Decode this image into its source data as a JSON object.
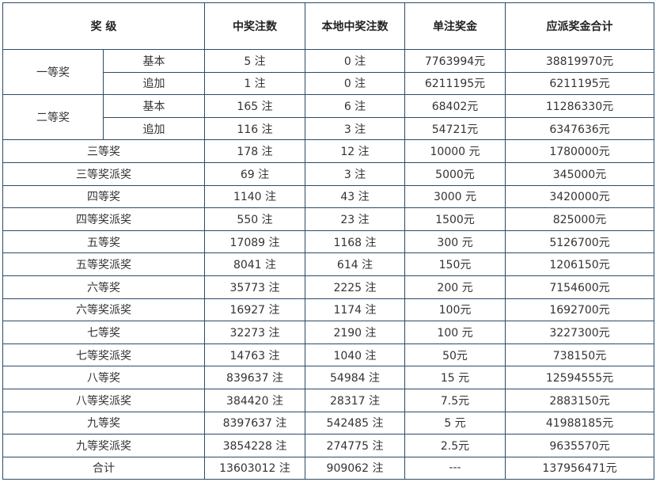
{
  "table": {
    "header": [
      "奖 级",
      "中奖注数",
      "本地中奖注数",
      "单注奖金",
      "应派奖金合计"
    ],
    "rows": [
      {
        "level": "一等奖",
        "sub": "基本",
        "count": "5 注",
        "local": "0 注",
        "prize": "7763994元",
        "total": "38819970元"
      },
      {
        "sub": "追加",
        "count": "1 注",
        "local": "0 注",
        "prize": "6211195元",
        "total": "6211195元"
      },
      {
        "level": "二等奖",
        "sub": "基本",
        "count": "165 注",
        "local": "6 注",
        "prize": "68402元",
        "total": "11286330元"
      },
      {
        "sub": "追加",
        "count": "116 注",
        "local": "3 注",
        "prize": "54721元",
        "total": "6347636元"
      },
      {
        "level": "三等奖",
        "count": "178 注",
        "local": "12 注",
        "prize": "10000 元",
        "total": "1780000元"
      },
      {
        "level": "三等奖派奖",
        "count": "69 注",
        "local": "3 注",
        "prize": "5000元",
        "total": "345000元"
      },
      {
        "level": "四等奖",
        "count": "1140 注",
        "local": "43 注",
        "prize": "3000 元",
        "total": "3420000元"
      },
      {
        "level": "四等奖派奖",
        "count": "550 注",
        "local": "23 注",
        "prize": "1500元",
        "total": "825000元"
      },
      {
        "level": "五等奖",
        "count": "17089 注",
        "local": "1168 注",
        "prize": "300 元",
        "total": "5126700元"
      },
      {
        "level": "五等奖派奖",
        "count": "8041 注",
        "local": "614 注",
        "prize": "150元",
        "total": "1206150元"
      },
      {
        "level": "六等奖",
        "count": "35773 注",
        "local": "2225 注",
        "prize": "200 元",
        "total": "7154600元"
      },
      {
        "level": "六等奖派奖",
        "count": "16927 注",
        "local": "1174 注",
        "prize": "100元",
        "total": "1692700元"
      },
      {
        "level": "七等奖",
        "count": "32273 注",
        "local": "2190 注",
        "prize": "100 元",
        "total": "3227300元"
      },
      {
        "level": "七等奖派奖",
        "count": "14763 注",
        "local": "1040 注",
        "prize": "50元",
        "total": "738150元"
      },
      {
        "level": "八等奖",
        "count": "839637 注",
        "local": "54984 注",
        "prize": "15 元",
        "total": "12594555元"
      },
      {
        "level": "八等奖派奖",
        "count": "384420 注",
        "local": "28317 注",
        "prize": "7.5元",
        "total": "2883150元"
      },
      {
        "level": "九等奖",
        "count": "8397637 注",
        "local": "542485 注",
        "prize": "5 元",
        "total": "41988185元"
      },
      {
        "level": "九等奖派奖",
        "count": "3854228 注",
        "local": "274775 注",
        "prize": "2.5元",
        "total": "9635570元"
      },
      {
        "level": "合计",
        "count": "13603012 注",
        "local": "909062 注",
        "prize": "---",
        "total": "137956471元"
      }
    ]
  }
}
